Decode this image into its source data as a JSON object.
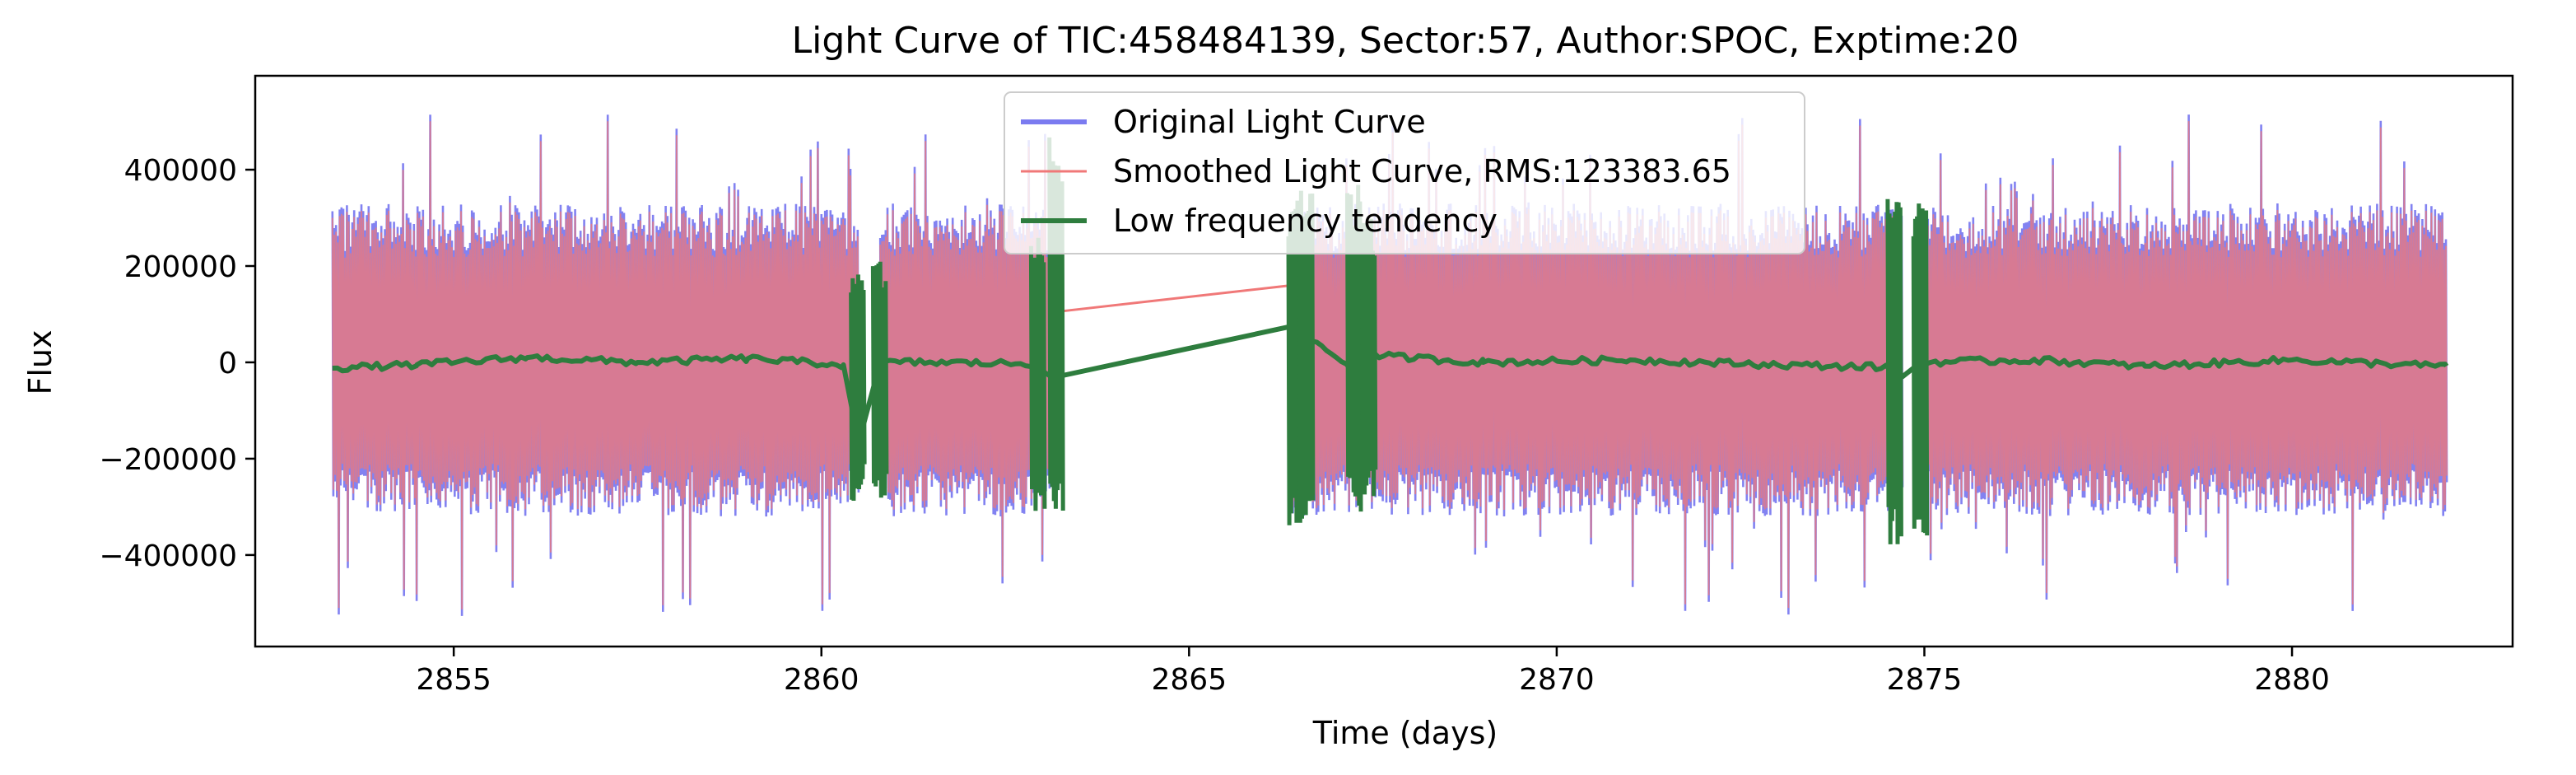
{
  "chart_data": {
    "type": "line",
    "title": "Light Curve of TIC:458484139, Sector:57, Author:SPOC, Exptime:20",
    "xlabel": "Time (days)",
    "ylabel": "Flux",
    "xlim": [
      2852.3,
      2883.0
    ],
    "ylim": [
      -590000,
      595000
    ],
    "xticks": [
      2855,
      2860,
      2865,
      2870,
      2875,
      2880
    ],
    "xtick_labels": [
      "2855",
      "2860",
      "2865",
      "2870",
      "2875",
      "2880"
    ],
    "yticks": [
      400000,
      200000,
      0,
      -200000,
      -400000
    ],
    "ytick_labels": [
      "400000",
      "200000",
      "0",
      "−200000",
      "−400000"
    ],
    "grid": false,
    "legend_position": "upper center",
    "segments": [
      {
        "start": 2853.35,
        "end": 2860.5
      },
      {
        "start": 2860.8,
        "end": 2863.2
      },
      {
        "start": 2866.4,
        "end": 2867.3
      },
      {
        "start": 2867.45,
        "end": 2874.7
      },
      {
        "start": 2874.95,
        "end": 2882.1
      }
    ],
    "series": [
      {
        "name": "Original Light Curve",
        "color": "#7b7bf0",
        "style": "dense noisy flux, amplitude about ±300000 with peaks near ±500000",
        "envelope_upper": 330000,
        "envelope_lower": -320000,
        "spike_max": 520000,
        "spike_min": -530000
      },
      {
        "name": "Smoothed Light Curve, RMS:123383.65",
        "color": "#f07878",
        "style": "overlaid on original; appears magenta where blended; thin line bridges gap",
        "bridge_points": [
          [
            2863.2,
            105000
          ],
          [
            2866.4,
            160000
          ]
        ]
      },
      {
        "name": "Low frequency tendency",
        "color": "#2e7d3e",
        "style": "near-zero trend with sharp jumps at segment edges",
        "level": 0,
        "points": [
          [
            2853.35,
            -12000
          ],
          [
            2854.5,
            -5000
          ],
          [
            2856.0,
            10000
          ],
          [
            2857.5,
            0
          ],
          [
            2859.0,
            8000
          ],
          [
            2860.3,
            -5000
          ],
          [
            2860.5,
            -170000
          ],
          [
            2860.8,
            0
          ],
          [
            2861.5,
            0
          ],
          [
            2862.9,
            -3000
          ],
          [
            2863.2,
            -30000
          ],
          [
            2866.4,
            75000
          ],
          [
            2867.3,
            -20000
          ],
          [
            2867.45,
            15000
          ],
          [
            2869.0,
            0
          ],
          [
            2871.0,
            5000
          ],
          [
            2873.0,
            -5000
          ],
          [
            2874.5,
            -10000
          ],
          [
            2874.7,
            -30000
          ],
          [
            2874.95,
            0
          ],
          [
            2876.5,
            5000
          ],
          [
            2878.0,
            -8000
          ],
          [
            2880.0,
            5000
          ],
          [
            2882.1,
            -8000
          ]
        ],
        "spikes": [
          {
            "x": 2860.5,
            "min": -290000,
            "max": 190000
          },
          {
            "x": 2860.8,
            "min": -290000,
            "max": 210000
          },
          {
            "x": 2862.95,
            "min": -310000,
            "max": 260000
          },
          {
            "x": 2863.2,
            "min": -310000,
            "max": 480000
          },
          {
            "x": 2866.45,
            "min": -340000,
            "max": 370000
          },
          {
            "x": 2866.6,
            "min": -340000,
            "max": 360000
          },
          {
            "x": 2867.25,
            "min": -310000,
            "max": 380000
          },
          {
            "x": 2867.45,
            "min": -300000,
            "max": 300000
          },
          {
            "x": 2874.6,
            "min": -380000,
            "max": 370000
          },
          {
            "x": 2874.95,
            "min": -380000,
            "max": 340000
          }
        ]
      }
    ]
  }
}
